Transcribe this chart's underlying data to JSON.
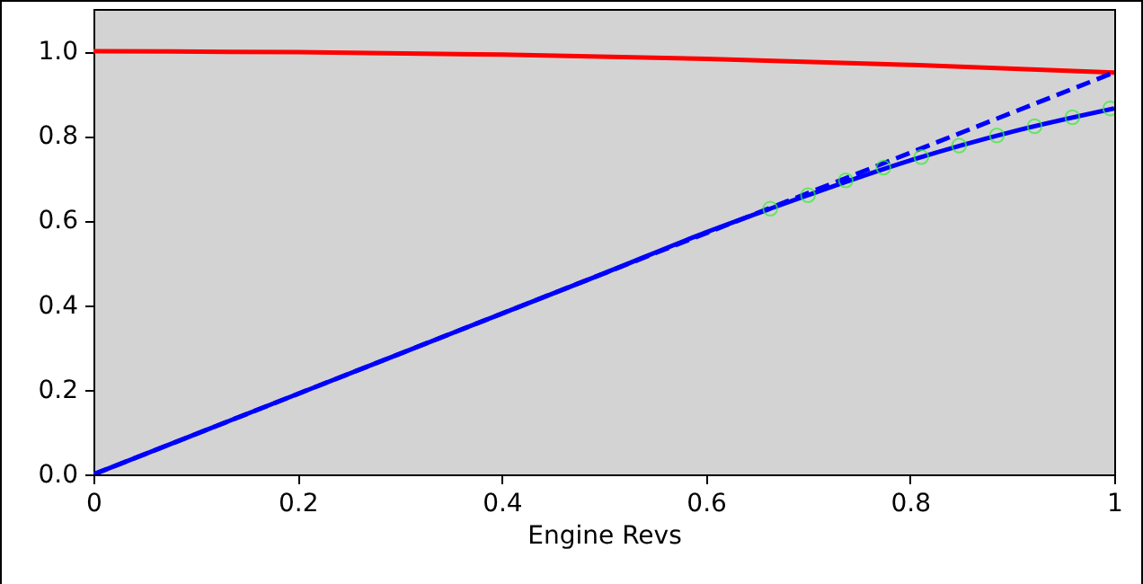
{
  "chart_data": {
    "type": "line",
    "xlabel": "Engine Revs",
    "xlim": [
      0,
      1
    ],
    "ylim": [
      0,
      1.1
    ],
    "xticks": [
      0,
      0.2,
      0.4,
      0.6,
      0.8,
      1
    ],
    "yticks": [
      {
        "value": 0,
        "label": "0.0"
      },
      {
        "value": 0.2,
        "label": "0.2"
      },
      {
        "value": 0.4,
        "label": "0.4"
      },
      {
        "value": 0.6,
        "label": "0.6"
      },
      {
        "value": 0.8,
        "label": "0.8"
      },
      {
        "value": 1,
        "label": "1.0"
      }
    ],
    "grid": false,
    "series": [
      {
        "type": "line",
        "color": "#ff0000",
        "line_style": "solid",
        "x": [
          0,
          0.2,
          0.4,
          0.6,
          0.8,
          1
        ],
        "values": [
          1,
          0.998,
          0.992,
          0.982,
          0.968,
          0.95
        ]
      },
      {
        "type": "line",
        "color": "#0000ff",
        "line_style": "dashed",
        "x": [
          0,
          1
        ],
        "values": [
          0,
          0.95
        ]
      },
      {
        "type": "line",
        "color": "#0000ff",
        "line_style": "solid",
        "x": [
          0,
          0.2,
          0.4,
          0.5,
          0.6,
          0.663,
          0.7,
          0.8,
          0.9,
          1
        ],
        "values": [
          0,
          0.19,
          0.38,
          0.475,
          0.572,
          0.628,
          0.66,
          0.742,
          0.81,
          0.865
        ]
      },
      {
        "type": "scatter",
        "color": "#33ee33",
        "marker": "circle",
        "x": [
          0.663,
          0.7,
          0.737,
          0.774,
          0.811,
          0.848,
          0.885,
          0.922,
          0.959,
          0.996
        ],
        "values": [
          0.628,
          0.66,
          0.695,
          0.725,
          0.75,
          0.777,
          0.801,
          0.823,
          0.844,
          0.865
        ]
      }
    ]
  }
}
